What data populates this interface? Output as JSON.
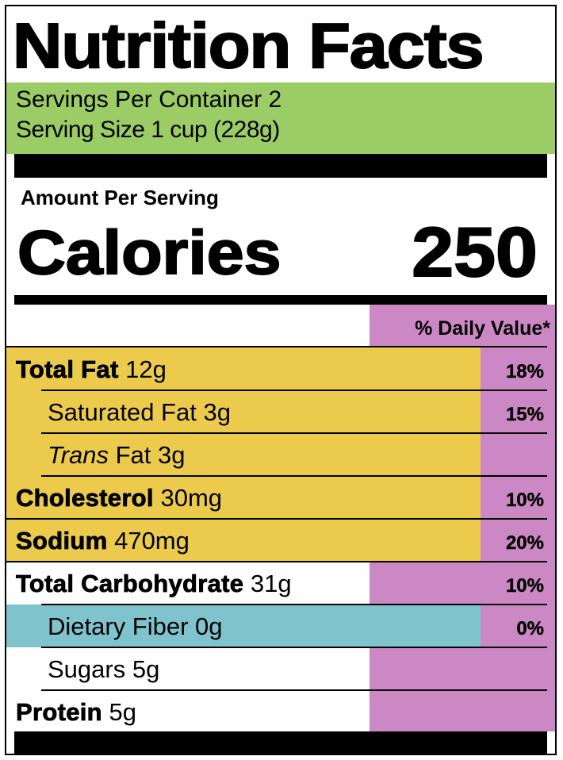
{
  "label": {
    "title": "Nutrition Facts",
    "servings_per_container": "Servings Per Container 2",
    "serving_size": "Serving Size 1 cup (228g)",
    "amount_per_serving": "Amount Per Serving",
    "calories_label": "Calories",
    "calories_value": "250",
    "daily_value_header": "% Daily Value*"
  },
  "nutrients": [
    {
      "name": "Total Fat",
      "amount": "12g",
      "dv": "18%",
      "bold": true,
      "italic_name": false,
      "indent": 0
    },
    {
      "name": "Saturated Fat",
      "amount": "3g",
      "dv": "15%",
      "bold": false,
      "italic_name": false,
      "indent": 1
    },
    {
      "name": "Trans",
      "name_rest": "Fat",
      "amount": "3g",
      "dv": "",
      "bold": false,
      "italic_name": true,
      "indent": 1
    },
    {
      "name": "Cholesterol",
      "amount": "30mg",
      "dv": "10%",
      "bold": true,
      "italic_name": false,
      "indent": 0
    },
    {
      "name": "Sodium",
      "amount": "470mg",
      "dv": "20%",
      "bold": true,
      "italic_name": false,
      "indent": 0
    },
    {
      "name": "Total Carbohydrate",
      "amount": "31g",
      "dv": "10%",
      "bold": true,
      "italic_name": false,
      "indent": 0
    },
    {
      "name": "Dietary Fiber",
      "amount": "0g",
      "dv": "0%",
      "bold": false,
      "italic_name": false,
      "indent": 1
    },
    {
      "name": "Sugars",
      "amount": "5g",
      "dv": "",
      "bold": false,
      "italic_name": false,
      "indent": 1
    },
    {
      "name": "Protein",
      "amount": "5g",
      "dv": "",
      "bold": true,
      "italic_name": false,
      "indent": 0
    }
  ],
  "colors": {
    "serving_highlight": "#9ccc65",
    "fat_sodium_highlight": "#eccb4c",
    "fiber_highlight": "#7fc4cd",
    "daily_value_column": "#cc88c4",
    "rules": "#000000"
  }
}
